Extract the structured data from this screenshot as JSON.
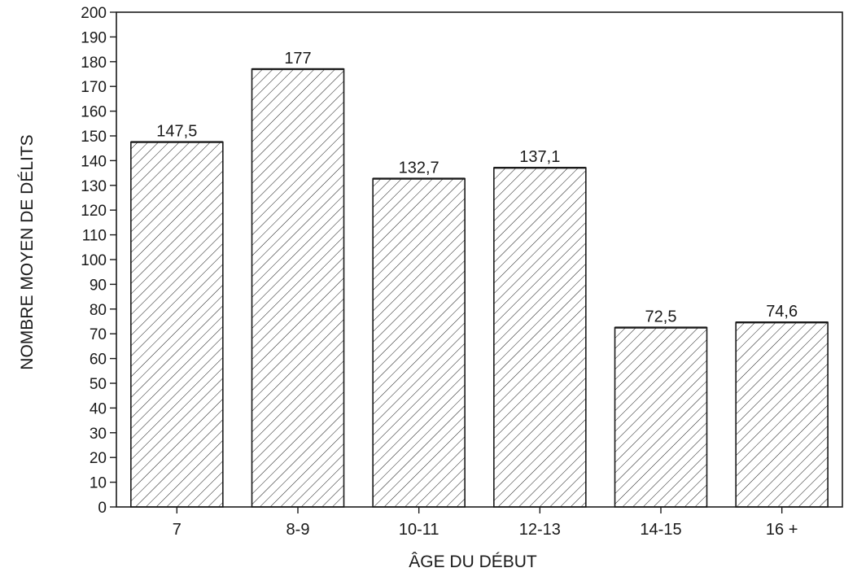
{
  "chart_data": {
    "type": "bar",
    "title": "",
    "xlabel": "ÂGE DU DÉBUT",
    "ylabel": "NOMBRE MOYEN DE DÉLITS",
    "categories": [
      "7",
      "8-9",
      "10-11",
      "12-13",
      "14-15",
      "16 +"
    ],
    "values": [
      147.5,
      177,
      132.7,
      137.1,
      72.5,
      74.6
    ],
    "value_labels": [
      "147,5",
      "177",
      "132,7",
      "137,1",
      "72,5",
      "74,6"
    ],
    "ylim": [
      0,
      200
    ],
    "yticks": [
      0,
      10,
      20,
      30,
      40,
      50,
      60,
      70,
      80,
      90,
      100,
      110,
      120,
      130,
      140,
      150,
      160,
      170,
      180,
      190,
      200
    ],
    "grid": false,
    "bar_style": "diagonal-hatch",
    "colors": {
      "ink": "#1a1a1a",
      "background": "#ffffff"
    }
  }
}
